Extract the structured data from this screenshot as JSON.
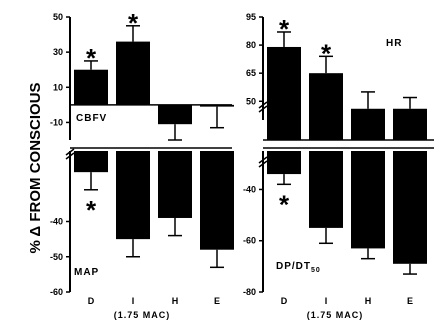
{
  "y_axis_label": "% Δ FROM CONSCIOUS",
  "subtitle": "(1.75 MAC)",
  "chart_data": [
    {
      "type": "bar",
      "panel": "CBFV",
      "label": "CBFV",
      "categories": [
        "D",
        "I",
        "H",
        "E"
      ],
      "values": [
        20,
        36,
        -11,
        -1
      ],
      "errors": [
        [
          5,
          5
        ],
        [
          9,
          9
        ],
        [
          9,
          9
        ],
        [
          12,
          12
        ]
      ],
      "significant": [
        true,
        true,
        false,
        false
      ],
      "ylim": [
        -20,
        50
      ],
      "yticks": [
        "50",
        "30",
        "10",
        "-10"
      ]
    },
    {
      "type": "bar",
      "panel": "MAP",
      "label": "MAP",
      "categories": [
        "D",
        "I",
        "H",
        "E"
      ],
      "values": [
        -26,
        -45,
        -39,
        -48
      ],
      "errors": [
        [
          5,
          5
        ],
        [
          5,
          5
        ],
        [
          5,
          5
        ],
        [
          5,
          5
        ]
      ],
      "significant": [
        true,
        false,
        false,
        false
      ],
      "ylim": [
        -60,
        -20
      ],
      "yticks": [
        "-40",
        "-50",
        "-60"
      ]
    },
    {
      "type": "bar",
      "panel": "HR",
      "label": "HR",
      "categories": [
        "D",
        "I",
        "H",
        "E"
      ],
      "values": [
        79,
        65,
        46,
        46
      ],
      "errors": [
        [
          8,
          8
        ],
        [
          9,
          9
        ],
        [
          9,
          9
        ],
        [
          6,
          6
        ]
      ],
      "significant": [
        true,
        true,
        false,
        false
      ],
      "ylim": [
        40,
        95
      ],
      "yticks": [
        "95",
        "80",
        "65",
        "50"
      ]
    },
    {
      "type": "bar",
      "panel": "DP/DT50",
      "label": "DP/DT",
      "label_subscript": "50",
      "categories": [
        "D",
        "I",
        "H",
        "E"
      ],
      "values": [
        -34,
        -55,
        -63,
        -69
      ],
      "errors": [
        [
          4,
          4
        ],
        [
          6,
          6
        ],
        [
          4,
          4
        ],
        [
          4,
          4
        ]
      ],
      "significant": [
        true,
        false,
        false,
        false
      ],
      "ylim": [
        -80,
        -25
      ],
      "yticks": [
        "-40",
        "-60",
        "-80"
      ]
    }
  ]
}
